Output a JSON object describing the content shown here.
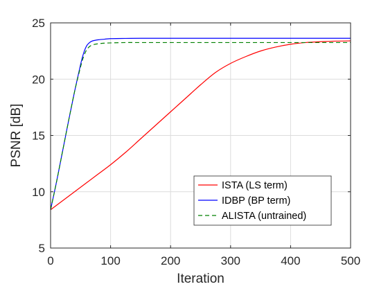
{
  "chart_data": {
    "type": "line",
    "title": "",
    "xlabel": "Iteration",
    "ylabel": "PSNR [dB]",
    "xlim": [
      0,
      500
    ],
    "ylim": [
      5,
      25
    ],
    "xticks": [
      0,
      100,
      200,
      300,
      400,
      500
    ],
    "yticks": [
      5,
      10,
      15,
      20,
      25
    ],
    "grid": true,
    "legend_position": "bottom-right",
    "series": [
      {
        "name": "ISTA (LS term)",
        "color": "#ff0000",
        "dash": "solid",
        "x": [
          0,
          25,
          50,
          75,
          100,
          125,
          150,
          175,
          200,
          225,
          250,
          275,
          300,
          325,
          350,
          375,
          400,
          425,
          450,
          475,
          500
        ],
        "y": [
          8.4,
          9.4,
          10.4,
          11.4,
          12.4,
          13.5,
          14.7,
          15.9,
          17.1,
          18.3,
          19.5,
          20.6,
          21.4,
          22.0,
          22.5,
          22.85,
          23.1,
          23.25,
          23.33,
          23.38,
          23.4
        ]
      },
      {
        "name": "IDBP (BP term)",
        "color": "#0000ff",
        "dash": "solid",
        "x": [
          0,
          10,
          20,
          30,
          40,
          50,
          55,
          60,
          65,
          70,
          80,
          90,
          100,
          125,
          150,
          200,
          300,
          400,
          500
        ],
        "y": [
          8.4,
          10.9,
          13.6,
          16.3,
          18.9,
          21.3,
          22.3,
          22.95,
          23.25,
          23.4,
          23.5,
          23.55,
          23.6,
          23.62,
          23.63,
          23.63,
          23.63,
          23.63,
          23.63
        ]
      },
      {
        "name": "ALISTA (untrained)",
        "color": "#008000",
        "dash": "dashed",
        "x": [
          0,
          10,
          20,
          30,
          40,
          50,
          55,
          60,
          65,
          70,
          80,
          90,
          100,
          125,
          150,
          200,
          300,
          400,
          500
        ],
        "y": [
          8.4,
          10.9,
          13.6,
          16.3,
          18.9,
          21.1,
          22.0,
          22.6,
          22.9,
          23.05,
          23.15,
          23.2,
          23.22,
          23.25,
          23.25,
          23.25,
          23.25,
          23.25,
          23.25
        ]
      }
    ]
  }
}
